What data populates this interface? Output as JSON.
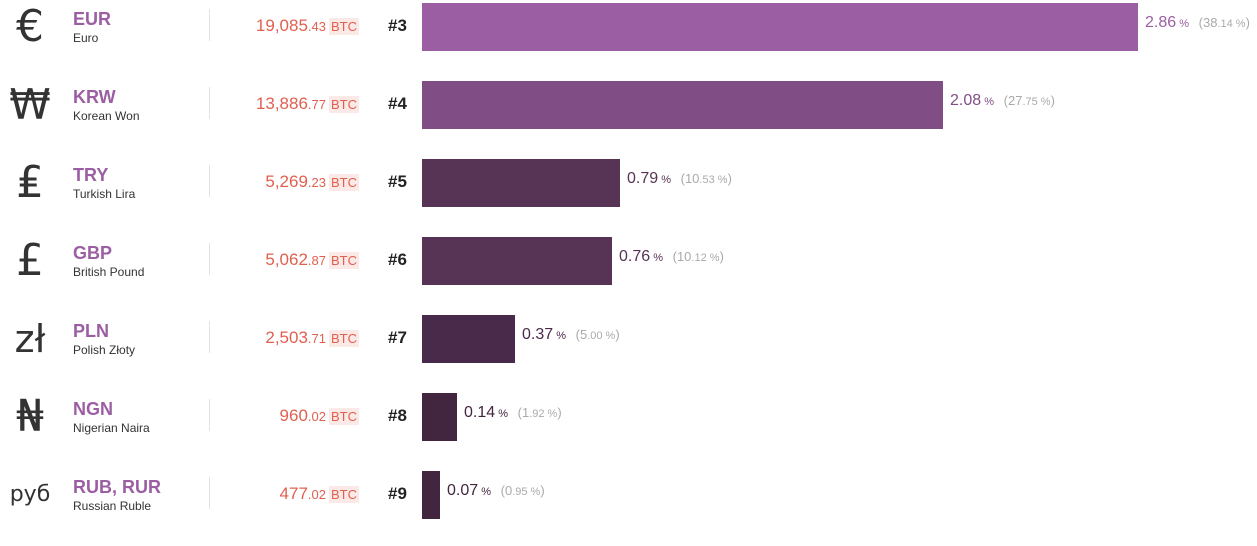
{
  "rows": [
    {
      "symbol": "€",
      "symbol_icon": "euro-sign-icon",
      "symbol_size": 44,
      "code": "EUR",
      "name": "Euro",
      "vol_int": "19,085",
      "vol_dec": ".43",
      "vol_unit": "BTC",
      "rank": "#3",
      "share_pct": 2.86,
      "share_int": "2",
      "share_dec": ".86",
      "pct_sym": "%",
      "sub_int": "38",
      "sub_dec": ".14",
      "sub_sym": "%",
      "bar_color": "#9b5ea2",
      "pct_color": "#9b5ea2"
    },
    {
      "symbol": "₩",
      "symbol_icon": "won-sign-icon",
      "symbol_size": 42,
      "code": "KRW",
      "name": "Korean Won",
      "vol_int": "13,886",
      "vol_dec": ".77",
      "vol_unit": "BTC",
      "rank": "#4",
      "share_pct": 2.08,
      "share_int": "2",
      "share_dec": ".08",
      "pct_sym": "%",
      "sub_int": "27",
      "sub_dec": ".75",
      "sub_sym": "%",
      "bar_color": "#814d85",
      "pct_color": "#814d85"
    },
    {
      "symbol": "₤",
      "symbol_icon": "lira-sign-icon",
      "symbol_size": 44,
      "code": "TRY",
      "name": "Turkish Lira",
      "vol_int": "5,269",
      "vol_dec": ".23",
      "vol_unit": "BTC",
      "rank": "#5",
      "share_pct": 0.79,
      "share_int": "0.",
      "share_dec": "79",
      "pct_sym": "%",
      "sub_int": "10",
      "sub_dec": ".53",
      "sub_sym": "%",
      "bar_color": "#573356",
      "pct_color": "#573356"
    },
    {
      "symbol": "£",
      "symbol_icon": "pound-sign-icon",
      "symbol_size": 44,
      "code": "GBP",
      "name": "British Pound",
      "vol_int": "5,062",
      "vol_dec": ".87",
      "vol_unit": "BTC",
      "rank": "#6",
      "share_pct": 0.76,
      "share_int": "0.",
      "share_dec": "76",
      "pct_sym": "%",
      "sub_int": "10",
      "sub_dec": ".12",
      "sub_sym": "%",
      "bar_color": "#573356",
      "pct_color": "#573356"
    },
    {
      "symbol": "zł",
      "symbol_icon": "zloty-sign-icon",
      "symbol_size": 38,
      "code": "PLN",
      "name": "Polish Złoty",
      "vol_int": "2,503",
      "vol_dec": ".71",
      "vol_unit": "BTC",
      "rank": "#7",
      "share_pct": 0.37,
      "share_int": "0.",
      "share_dec": "37",
      "pct_sym": "%",
      "sub_int": "5",
      "sub_dec": ".00",
      "sub_sym": "%",
      "bar_color": "#4a2a4a",
      "pct_color": "#4a2a4a"
    },
    {
      "symbol": "₦",
      "symbol_icon": "naira-sign-icon",
      "symbol_size": 44,
      "code": "NGN",
      "name": "Nigerian Naira",
      "vol_int": "960",
      "vol_dec": ".02",
      "vol_unit": "BTC",
      "rank": "#8",
      "share_pct": 0.14,
      "share_int": "0.",
      "share_dec": "14",
      "pct_sym": "%",
      "sub_int": "1",
      "sub_dec": ".92",
      "sub_sym": "%",
      "bar_color": "#42253f",
      "pct_color": "#42253f"
    },
    {
      "symbol": "руб",
      "symbol_icon": "ruble-sign-icon",
      "symbol_size": 22,
      "code": "RUB, RUR",
      "name": "Russian Ruble",
      "vol_int": "477",
      "vol_dec": ".02",
      "vol_unit": "BTC",
      "rank": "#9",
      "share_pct": 0.07,
      "share_int": "0.0",
      "share_dec": "7",
      "pct_sym": "%",
      "sub_int": "0",
      "sub_dec": ".95",
      "sub_sym": "%",
      "bar_color": "#42253f",
      "pct_color": "#42253f"
    }
  ]
}
